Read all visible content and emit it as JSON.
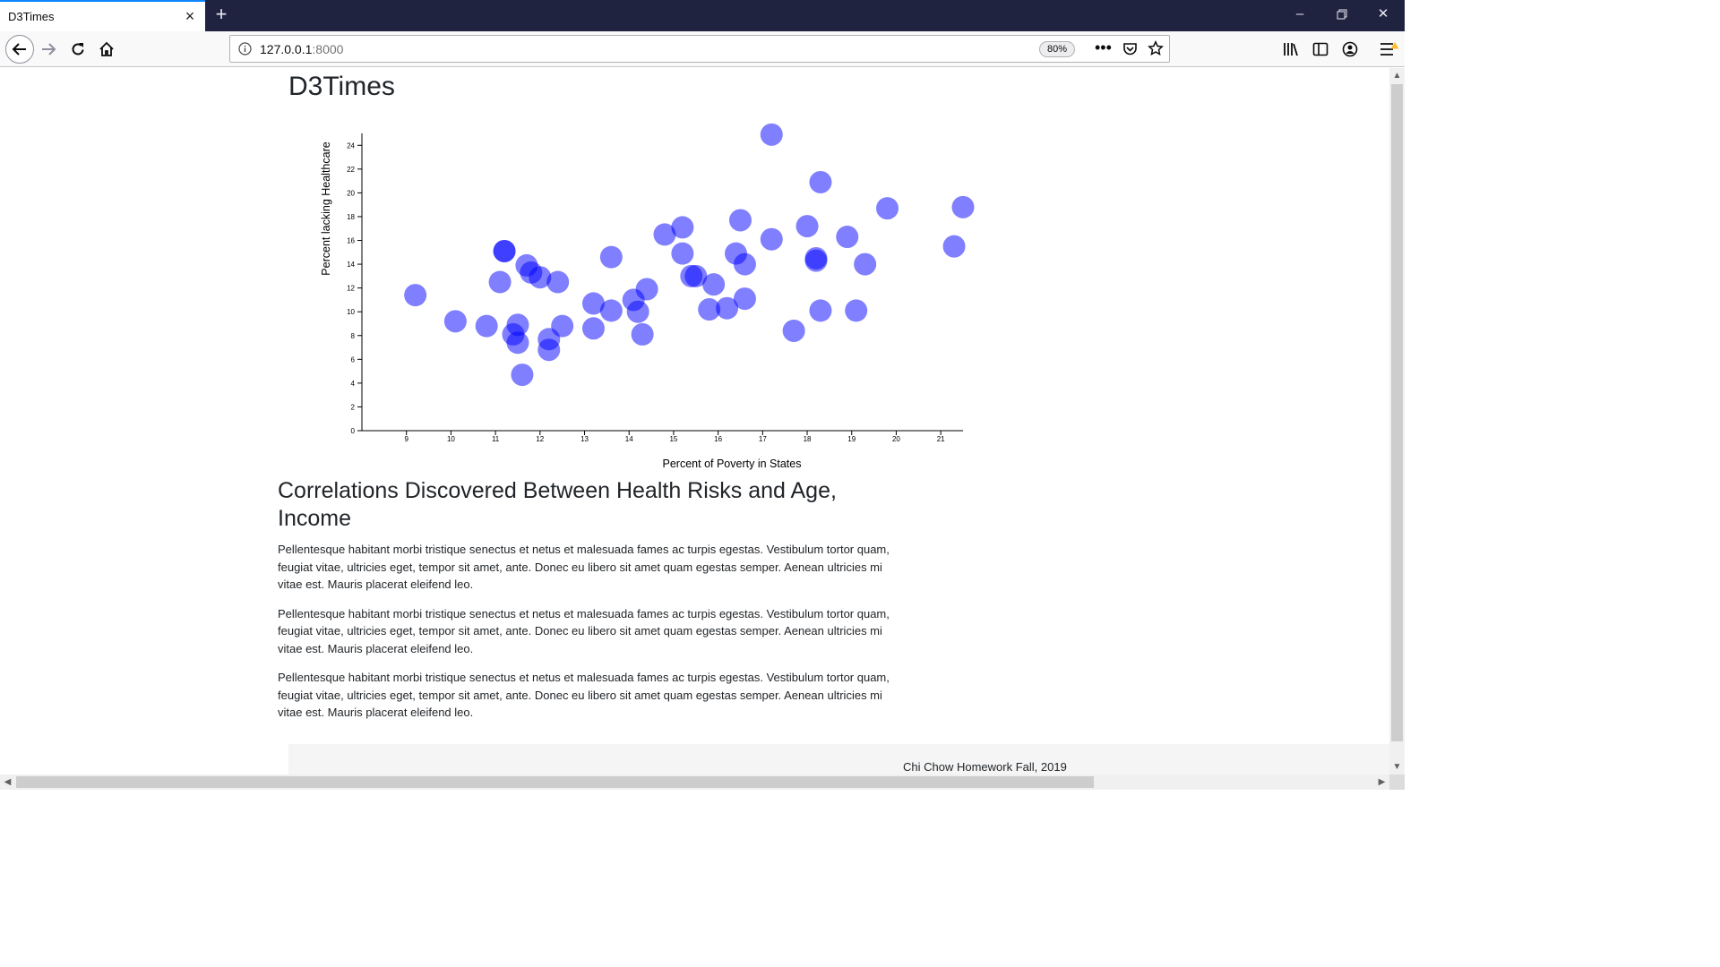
{
  "browser": {
    "tab_title": "D3Times",
    "url_host": "127.0.0.1",
    "url_port": ":8000",
    "zoom": "80%",
    "icons": [
      "close-icon",
      "plus-icon",
      "minimize-icon",
      "restore-icon",
      "window-close-icon",
      "back-arrow-icon",
      "forward-arrow-icon",
      "reload-icon",
      "home-icon",
      "info-icon",
      "more-icon",
      "pocket-icon",
      "star-icon",
      "library-icon",
      "sidebar-icon",
      "account-icon",
      "menu-icon"
    ]
  },
  "page": {
    "brand": "D3Times",
    "article": {
      "heading": "Correlations Discovered Between Health Risks and Age, Income",
      "paragraphs": [
        "Pellentesque habitant morbi tristique senectus et netus et malesuada fames ac turpis egestas. Vestibulum tortor quam, feugiat vitae, ultricies eget, tempor sit amet, ante. Donec eu libero sit amet quam egestas semper. Aenean ultricies mi vitae est. Mauris placerat eleifend leo.",
        "Pellentesque habitant morbi tristique senectus et netus et malesuada fames ac turpis egestas. Vestibulum tortor quam, feugiat vitae, ultricies eget, tempor sit amet, ante. Donec eu libero sit amet quam egestas semper. Aenean ultricies mi vitae est. Mauris placerat eleifend leo.",
        "Pellentesque habitant morbi tristique senectus et netus et malesuada fames ac turpis egestas. Vestibulum tortor quam, feugiat vitae, ultricies eget, tempor sit amet, ante. Donec eu libero sit amet quam egestas semper. Aenean ultricies mi vitae est. Mauris placerat eleifend leo."
      ]
    },
    "footer": "Chi Chow Homework Fall, 2019"
  },
  "chart_data": {
    "type": "scatter",
    "title": "",
    "xlabel": "Percent of Poverty in States",
    "ylabel": "Percent lacking Healthcare",
    "xlim": [
      8,
      21.5
    ],
    "ylim": [
      0,
      25
    ],
    "xticks": [
      9,
      10,
      11,
      12,
      13,
      14,
      15,
      16,
      17,
      18,
      19,
      20,
      21
    ],
    "yticks": [
      0,
      2,
      4,
      6,
      8,
      10,
      12,
      14,
      16,
      18,
      20,
      22,
      24
    ],
    "grid": false,
    "marker_color": "#0000ff",
    "marker_opacity": 0.5,
    "points": [
      {
        "x": 9.2,
        "y": 11.4
      },
      {
        "x": 10.1,
        "y": 9.2
      },
      {
        "x": 10.8,
        "y": 8.8
      },
      {
        "x": 11.1,
        "y": 12.5
      },
      {
        "x": 11.2,
        "y": 15.1
      },
      {
        "x": 11.2,
        "y": 15.1
      },
      {
        "x": 11.4,
        "y": 8.1
      },
      {
        "x": 11.5,
        "y": 8.9
      },
      {
        "x": 11.5,
        "y": 7.4
      },
      {
        "x": 11.6,
        "y": 4.7
      },
      {
        "x": 11.7,
        "y": 13.9
      },
      {
        "x": 11.8,
        "y": 13.3
      },
      {
        "x": 12.0,
        "y": 12.9
      },
      {
        "x": 12.2,
        "y": 7.7
      },
      {
        "x": 12.2,
        "y": 6.8
      },
      {
        "x": 12.4,
        "y": 12.5
      },
      {
        "x": 12.5,
        "y": 8.8
      },
      {
        "x": 13.2,
        "y": 10.7
      },
      {
        "x": 13.2,
        "y": 8.6
      },
      {
        "x": 13.6,
        "y": 14.6
      },
      {
        "x": 13.6,
        "y": 10.1
      },
      {
        "x": 14.1,
        "y": 11.0
      },
      {
        "x": 14.2,
        "y": 10.0
      },
      {
        "x": 14.3,
        "y": 8.1
      },
      {
        "x": 14.4,
        "y": 11.9
      },
      {
        "x": 14.8,
        "y": 16.5
      },
      {
        "x": 15.2,
        "y": 17.1
      },
      {
        "x": 15.2,
        "y": 14.9
      },
      {
        "x": 15.4,
        "y": 13.0
      },
      {
        "x": 15.5,
        "y": 13.0
      },
      {
        "x": 15.8,
        "y": 10.2
      },
      {
        "x": 15.9,
        "y": 12.3
      },
      {
        "x": 16.2,
        "y": 10.3
      },
      {
        "x": 16.4,
        "y": 14.9
      },
      {
        "x": 16.5,
        "y": 17.7
      },
      {
        "x": 16.6,
        "y": 14.0
      },
      {
        "x": 16.6,
        "y": 11.1
      },
      {
        "x": 17.2,
        "y": 24.9
      },
      {
        "x": 17.2,
        "y": 16.1
      },
      {
        "x": 17.7,
        "y": 8.4
      },
      {
        "x": 18.0,
        "y": 17.2
      },
      {
        "x": 18.2,
        "y": 14.5
      },
      {
        "x": 18.2,
        "y": 14.3
      },
      {
        "x": 18.3,
        "y": 20.9
      },
      {
        "x": 18.3,
        "y": 10.1
      },
      {
        "x": 18.9,
        "y": 16.3
      },
      {
        "x": 19.1,
        "y": 10.1
      },
      {
        "x": 19.3,
        "y": 14.0
      },
      {
        "x": 19.8,
        "y": 18.7
      },
      {
        "x": 21.3,
        "y": 15.5
      },
      {
        "x": 21.5,
        "y": 18.8
      }
    ]
  }
}
